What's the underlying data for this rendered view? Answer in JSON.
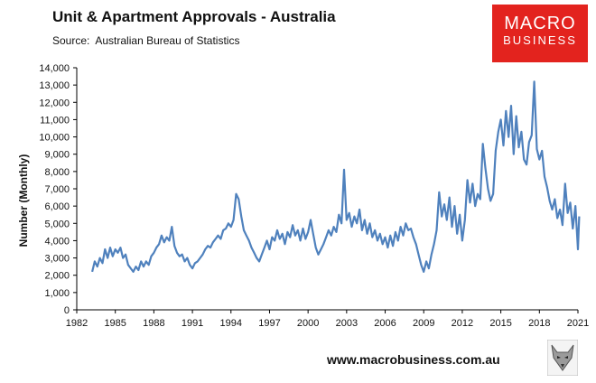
{
  "header": {
    "title": "Unit & Apartment Approvals - Australia",
    "source_label": "Source:",
    "source_text": "Australian Bureau of Statistics"
  },
  "logo": {
    "line1": "MACRO",
    "line2": "BUSINESS"
  },
  "footer": {
    "url": "www.macrobusiness.com.au"
  },
  "colors": {
    "series": "#4f81bd",
    "logo_bg": "#e3231e"
  },
  "icons": {
    "mascot": "wolf-icon"
  },
  "chart_data": {
    "type": "line",
    "title": "Unit & Apartment Approvals - Australia",
    "xlabel": "",
    "ylabel": "Number (Monthly)",
    "xlim": [
      1982,
      2021
    ],
    "ylim": [
      0,
      14000
    ],
    "x_ticks": [
      1982,
      1985,
      1988,
      1991,
      1994,
      1997,
      2000,
      2003,
      2006,
      2009,
      2012,
      2015,
      2018,
      2021
    ],
    "y_ticks": [
      0,
      1000,
      2000,
      3000,
      4000,
      5000,
      6000,
      7000,
      8000,
      9000,
      10000,
      11000,
      12000,
      13000,
      14000
    ],
    "y_tick_labels": [
      "0",
      "1,000",
      "2,000",
      "3,000",
      "4,000",
      "5,000",
      "6,000",
      "7,000",
      "8,000",
      "9,000",
      "10,000",
      "11,000",
      "12,000",
      "13,000",
      "14,000"
    ],
    "grid": false,
    "legend": "none",
    "series": [
      {
        "values": [
          [
            1983.2,
            2200
          ],
          [
            1983.4,
            2800
          ],
          [
            1983.6,
            2500
          ],
          [
            1983.8,
            3000
          ],
          [
            1984.0,
            2700
          ],
          [
            1984.2,
            3500
          ],
          [
            1984.4,
            3000
          ],
          [
            1984.6,
            3600
          ],
          [
            1984.8,
            3100
          ],
          [
            1985.0,
            3500
          ],
          [
            1985.2,
            3300
          ],
          [
            1985.4,
            3600
          ],
          [
            1985.6,
            3000
          ],
          [
            1985.8,
            3200
          ],
          [
            1986.0,
            2600
          ],
          [
            1986.2,
            2400
          ],
          [
            1986.4,
            2200
          ],
          [
            1986.6,
            2500
          ],
          [
            1986.8,
            2300
          ],
          [
            1987.0,
            2800
          ],
          [
            1987.2,
            2500
          ],
          [
            1987.4,
            2800
          ],
          [
            1987.6,
            2600
          ],
          [
            1987.8,
            3100
          ],
          [
            1988.0,
            3300
          ],
          [
            1988.2,
            3600
          ],
          [
            1988.4,
            3800
          ],
          [
            1988.6,
            4300
          ],
          [
            1988.8,
            3900
          ],
          [
            1989.0,
            4200
          ],
          [
            1989.2,
            4000
          ],
          [
            1989.4,
            4800
          ],
          [
            1989.6,
            3700
          ],
          [
            1989.8,
            3300
          ],
          [
            1990.0,
            3100
          ],
          [
            1990.2,
            3200
          ],
          [
            1990.4,
            2800
          ],
          [
            1990.6,
            3000
          ],
          [
            1990.8,
            2600
          ],
          [
            1991.0,
            2400
          ],
          [
            1991.2,
            2700
          ],
          [
            1991.4,
            2800
          ],
          [
            1991.6,
            3000
          ],
          [
            1991.8,
            3200
          ],
          [
            1992.0,
            3500
          ],
          [
            1992.2,
            3700
          ],
          [
            1992.4,
            3600
          ],
          [
            1992.6,
            3900
          ],
          [
            1992.8,
            4100
          ],
          [
            1993.0,
            4300
          ],
          [
            1993.2,
            4100
          ],
          [
            1993.4,
            4600
          ],
          [
            1993.6,
            4700
          ],
          [
            1993.8,
            5000
          ],
          [
            1994.0,
            4800
          ],
          [
            1994.2,
            5200
          ],
          [
            1994.4,
            6700
          ],
          [
            1994.6,
            6400
          ],
          [
            1994.8,
            5400
          ],
          [
            1995.0,
            4600
          ],
          [
            1995.2,
            4300
          ],
          [
            1995.4,
            4000
          ],
          [
            1995.6,
            3600
          ],
          [
            1995.8,
            3300
          ],
          [
            1996.0,
            3000
          ],
          [
            1996.2,
            2800
          ],
          [
            1996.4,
            3200
          ],
          [
            1996.6,
            3600
          ],
          [
            1996.8,
            4000
          ],
          [
            1997.0,
            3500
          ],
          [
            1997.2,
            4200
          ],
          [
            1997.4,
            4000
          ],
          [
            1997.6,
            4600
          ],
          [
            1997.8,
            4100
          ],
          [
            1998.0,
            4400
          ],
          [
            1998.2,
            3800
          ],
          [
            1998.4,
            4500
          ],
          [
            1998.6,
            4200
          ],
          [
            1998.8,
            4900
          ],
          [
            1999.0,
            4300
          ],
          [
            1999.2,
            4600
          ],
          [
            1999.4,
            4000
          ],
          [
            1999.6,
            4700
          ],
          [
            1999.8,
            4100
          ],
          [
            2000.0,
            4500
          ],
          [
            2000.2,
            5200
          ],
          [
            2000.4,
            4400
          ],
          [
            2000.6,
            3600
          ],
          [
            2000.8,
            3200
          ],
          [
            2001.0,
            3500
          ],
          [
            2001.2,
            3800
          ],
          [
            2001.4,
            4200
          ],
          [
            2001.6,
            4600
          ],
          [
            2001.8,
            4300
          ],
          [
            2002.0,
            4800
          ],
          [
            2002.2,
            4500
          ],
          [
            2002.4,
            5500
          ],
          [
            2002.6,
            5000
          ],
          [
            2002.8,
            8100
          ],
          [
            2003.0,
            5200
          ],
          [
            2003.2,
            5600
          ],
          [
            2003.4,
            4800
          ],
          [
            2003.6,
            5400
          ],
          [
            2003.8,
            5000
          ],
          [
            2004.0,
            5800
          ],
          [
            2004.2,
            4600
          ],
          [
            2004.4,
            5200
          ],
          [
            2004.6,
            4400
          ],
          [
            2004.8,
            5000
          ],
          [
            2005.0,
            4200
          ],
          [
            2005.2,
            4600
          ],
          [
            2005.4,
            4000
          ],
          [
            2005.6,
            4400
          ],
          [
            2005.8,
            3800
          ],
          [
            2006.0,
            4200
          ],
          [
            2006.2,
            3600
          ],
          [
            2006.4,
            4300
          ],
          [
            2006.6,
            3700
          ],
          [
            2006.8,
            4500
          ],
          [
            2007.0,
            4000
          ],
          [
            2007.2,
            4800
          ],
          [
            2007.4,
            4300
          ],
          [
            2007.6,
            5000
          ],
          [
            2007.8,
            4600
          ],
          [
            2008.0,
            4700
          ],
          [
            2008.2,
            4200
          ],
          [
            2008.4,
            3800
          ],
          [
            2008.6,
            3200
          ],
          [
            2008.8,
            2600
          ],
          [
            2009.0,
            2200
          ],
          [
            2009.2,
            2800
          ],
          [
            2009.4,
            2400
          ],
          [
            2009.6,
            3200
          ],
          [
            2009.8,
            3800
          ],
          [
            2010.0,
            4600
          ],
          [
            2010.2,
            6800
          ],
          [
            2010.4,
            5400
          ],
          [
            2010.6,
            6100
          ],
          [
            2010.8,
            5200
          ],
          [
            2011.0,
            6500
          ],
          [
            2011.2,
            4800
          ],
          [
            2011.4,
            6000
          ],
          [
            2011.6,
            4400
          ],
          [
            2011.8,
            5500
          ],
          [
            2012.0,
            4000
          ],
          [
            2012.2,
            5200
          ],
          [
            2012.4,
            7500
          ],
          [
            2012.6,
            6200
          ],
          [
            2012.8,
            7300
          ],
          [
            2013.0,
            6000
          ],
          [
            2013.2,
            6700
          ],
          [
            2013.4,
            6400
          ],
          [
            2013.6,
            9600
          ],
          [
            2013.8,
            8200
          ],
          [
            2014.0,
            7000
          ],
          [
            2014.2,
            6300
          ],
          [
            2014.4,
            6700
          ],
          [
            2014.6,
            9200
          ],
          [
            2014.8,
            10300
          ],
          [
            2015.0,
            11000
          ],
          [
            2015.2,
            9500
          ],
          [
            2015.4,
            11500
          ],
          [
            2015.6,
            10000
          ],
          [
            2015.8,
            11800
          ],
          [
            2016.0,
            9000
          ],
          [
            2016.2,
            11200
          ],
          [
            2016.4,
            9400
          ],
          [
            2016.6,
            10300
          ],
          [
            2016.8,
            8700
          ],
          [
            2017.0,
            8400
          ],
          [
            2017.2,
            9700
          ],
          [
            2017.4,
            10100
          ],
          [
            2017.6,
            13200
          ],
          [
            2017.8,
            9300
          ],
          [
            2018.0,
            8700
          ],
          [
            2018.2,
            9200
          ],
          [
            2018.4,
            7700
          ],
          [
            2018.6,
            7100
          ],
          [
            2018.8,
            6300
          ],
          [
            2019.0,
            5800
          ],
          [
            2019.2,
            6400
          ],
          [
            2019.4,
            5300
          ],
          [
            2019.6,
            5800
          ],
          [
            2019.8,
            4900
          ],
          [
            2020.0,
            7300
          ],
          [
            2020.2,
            5600
          ],
          [
            2020.4,
            6200
          ],
          [
            2020.6,
            4700
          ],
          [
            2020.8,
            6000
          ],
          [
            2021.0,
            3500
          ],
          [
            2021.1,
            5400
          ]
        ]
      }
    ]
  }
}
